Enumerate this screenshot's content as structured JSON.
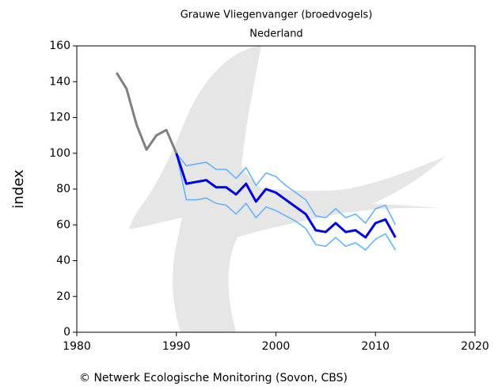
{
  "chart_data": {
    "type": "line",
    "title": "Grauwe Vliegenvanger (broedvogels)",
    "subtitle": "Nederland",
    "y_label": "index",
    "footer": "© Netwerk Ecologische Monitoring (Sovon, CBS)",
    "xlim": [
      1980,
      2020
    ],
    "xticks": [
      1980,
      1990,
      2000,
      2010,
      2020
    ],
    "ylim": [
      0,
      160
    ],
    "yticks": [
      0,
      20,
      40,
      60,
      80,
      100,
      120,
      140,
      160
    ],
    "series": [
      {
        "color": "#808080",
        "x": [
          1984,
          1985,
          1986,
          1987,
          1988,
          1989,
          1990
        ],
        "values": [
          145,
          136,
          116,
          102,
          110,
          113,
          100
        ]
      },
      {
        "color": "#66b3ff",
        "x": [
          1990,
          1991,
          1992,
          1993,
          1994,
          1995,
          1996,
          1997,
          1998,
          1999,
          2000,
          2001,
          2002,
          2003,
          2004,
          2005,
          2006,
          2007,
          2008,
          2009,
          2010,
          2011,
          2012
        ],
        "values": [
          100,
          93,
          94,
          95,
          91,
          91,
          86,
          92,
          82,
          89,
          87,
          82,
          78,
          74,
          65,
          64,
          69,
          64,
          66,
          61,
          69,
          71,
          60
        ]
      },
      {
        "color": "#66b3ff",
        "x": [
          1990,
          1991,
          1992,
          1993,
          1994,
          1995,
          1996,
          1997,
          1998,
          1999,
          2000,
          2001,
          2002,
          2003,
          2004,
          2005,
          2006,
          2007,
          2008,
          2009,
          2010,
          2011,
          2012
        ],
        "values": [
          100,
          74,
          74,
          75,
          72,
          71,
          66,
          72,
          64,
          70,
          68,
          65,
          62,
          58,
          49,
          48,
          53,
          48,
          50,
          46,
          52,
          55,
          46
        ]
      },
      {
        "color": "#0000e0",
        "x": [
          1990,
          1991,
          1992,
          1993,
          1994,
          1995,
          1996,
          1997,
          1998,
          1999,
          2000,
          2001,
          2002,
          2003,
          2004,
          2005,
          2006,
          2007,
          2008,
          2009,
          2010,
          2011,
          2012
        ],
        "values": [
          100,
          83,
          84,
          85,
          81,
          81,
          77,
          83,
          73,
          80,
          78,
          74,
          70,
          66,
          57,
          56,
          61,
          56,
          57,
          53,
          61,
          63,
          53
        ]
      }
    ]
  }
}
